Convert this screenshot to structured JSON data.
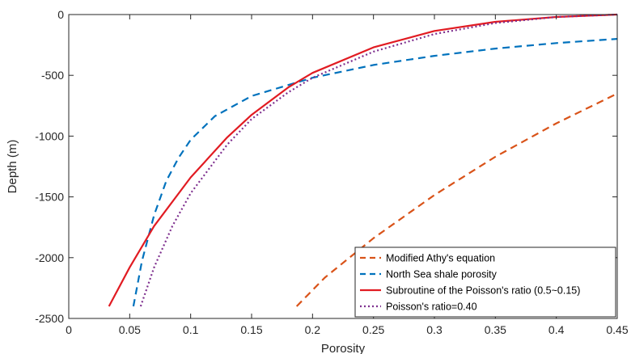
{
  "chart_data": {
    "type": "line",
    "title": "",
    "xlabel": "Porosity",
    "ylabel": "Depth (m)",
    "xlim": [
      0,
      0.45
    ],
    "ylim": [
      -2500,
      0
    ],
    "xticks": [
      0,
      0.05,
      0.1,
      0.15,
      0.2,
      0.25,
      0.3,
      0.35,
      0.4,
      0.45
    ],
    "xtick_labels": [
      "0",
      "0.05",
      "0.1",
      "0.15",
      "0.2",
      "0.25",
      "0.3",
      "0.35",
      "0.4",
      "0.45"
    ],
    "yticks": [
      0,
      -500,
      -1000,
      -1500,
      -2000,
      -2500
    ],
    "ytick_labels": [
      "0",
      "-500",
      "-1000",
      "-1500",
      "-2000",
      "-2500"
    ],
    "grid": false,
    "legend_position": "bottom-right",
    "series": [
      {
        "name": "Modified Athy's equation",
        "color": "#d95319",
        "style": "dashed",
        "points": [
          [
            0.187,
            -2400
          ],
          [
            0.21,
            -2165
          ],
          [
            0.25,
            -1840
          ],
          [
            0.3,
            -1485
          ],
          [
            0.35,
            -1170
          ],
          [
            0.4,
            -895
          ],
          [
            0.45,
            -650
          ]
        ]
      },
      {
        "name": "North Sea shale porosity",
        "color": "#0072bd",
        "style": "dashed",
        "points": [
          [
            0.053,
            -2400
          ],
          [
            0.06,
            -2030
          ],
          [
            0.07,
            -1650
          ],
          [
            0.08,
            -1370
          ],
          [
            0.09,
            -1180
          ],
          [
            0.1,
            -1030
          ],
          [
            0.12,
            -835
          ],
          [
            0.15,
            -670
          ],
          [
            0.2,
            -520
          ],
          [
            0.25,
            -415
          ],
          [
            0.3,
            -340
          ],
          [
            0.35,
            -280
          ],
          [
            0.4,
            -235
          ],
          [
            0.45,
            -200
          ]
        ]
      },
      {
        "name": "Subroutine of the Poisson's ratio (0.5~0.15)",
        "color": "#e11b22",
        "style": "solid",
        "points": [
          [
            0.033,
            -2400
          ],
          [
            0.05,
            -2080
          ],
          [
            0.07,
            -1740
          ],
          [
            0.1,
            -1340
          ],
          [
            0.13,
            -1010
          ],
          [
            0.15,
            -825
          ],
          [
            0.18,
            -600
          ],
          [
            0.2,
            -480
          ],
          [
            0.25,
            -270
          ],
          [
            0.3,
            -135
          ],
          [
            0.35,
            -60
          ],
          [
            0.4,
            -20
          ],
          [
            0.45,
            0
          ]
        ]
      },
      {
        "name": "Poisson's ratio=0.40",
        "color": "#7e2f8e",
        "style": "dotted",
        "points": [
          [
            0.059,
            -2400
          ],
          [
            0.07,
            -2080
          ],
          [
            0.085,
            -1740
          ],
          [
            0.1,
            -1470
          ],
          [
            0.13,
            -1070
          ],
          [
            0.15,
            -860
          ],
          [
            0.18,
            -640
          ],
          [
            0.2,
            -520
          ],
          [
            0.25,
            -305
          ],
          [
            0.3,
            -160
          ],
          [
            0.35,
            -70
          ],
          [
            0.4,
            -20
          ],
          [
            0.45,
            0
          ]
        ]
      }
    ]
  }
}
